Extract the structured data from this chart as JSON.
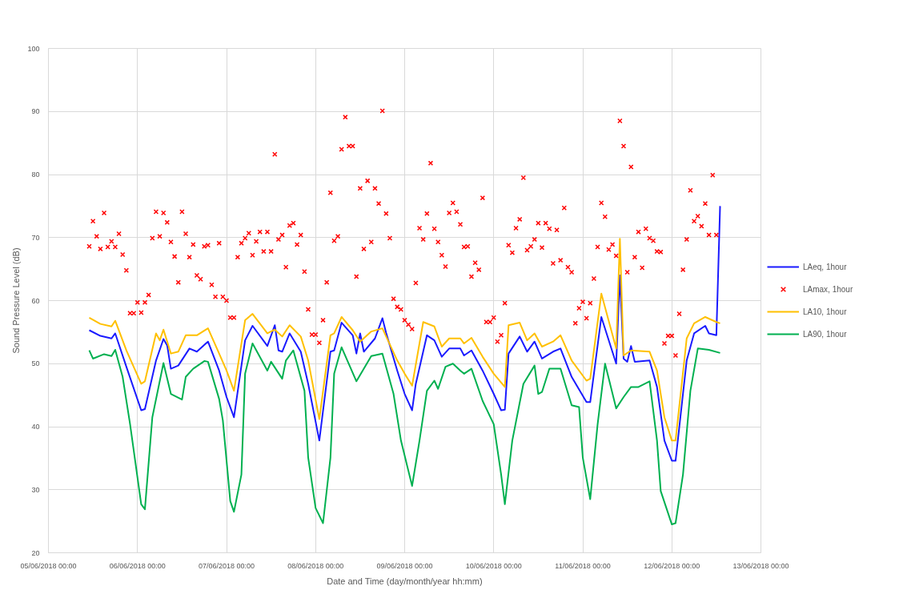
{
  "chart_data": {
    "type": "line",
    "xlabel": "Date and Time (day/month/year hh:mm)",
    "ylabel": "Sound Pressure Level (dB)",
    "xlim": [
      "2018-06-05T00:00",
      "2018-06-13T00:00"
    ],
    "xticks": [
      {
        "value": "2018-06-05T00:00",
        "label": "05/06/2018 00:00"
      },
      {
        "value": "2018-06-06T00:00",
        "label": "06/06/2018 00:00"
      },
      {
        "value": "2018-06-07T00:00",
        "label": "07/06/2018 00:00"
      },
      {
        "value": "2018-06-08T00:00",
        "label": "08/06/2018 00:00"
      },
      {
        "value": "2018-06-09T00:00",
        "label": "09/06/2018 00:00"
      },
      {
        "value": "2018-06-10T00:00",
        "label": "10/06/2018 00:00"
      },
      {
        "value": "2018-06-11T00:00",
        "label": "11/06/2018 00:00"
      },
      {
        "value": "2018-06-12T00:00",
        "label": "12/06/2018 00:00"
      },
      {
        "value": "2018-06-13T00:00",
        "label": "13/06/2018 00:00"
      }
    ],
    "ylim": [
      20,
      100
    ],
    "yticks": [
      20,
      30,
      40,
      50,
      60,
      70,
      80,
      90,
      100
    ],
    "grid": true,
    "legend": "right",
    "series": [
      {
        "name": "LAeq, 1hour",
        "color": "#1a1aff",
        "x": [
          "2018-06-05T11:00",
          "2018-06-05T14:00",
          "2018-06-05T17:00",
          "2018-06-05T18:00",
          "2018-06-05T21:00",
          "2018-06-06T01:00",
          "2018-06-06T02:00",
          "2018-06-06T05:00",
          "2018-06-06T07:00",
          "2018-06-06T08:00",
          "2018-06-06T09:00",
          "2018-06-06T11:00",
          "2018-06-06T14:00",
          "2018-06-06T16:00",
          "2018-06-06T19:00",
          "2018-06-06T22:00",
          "2018-06-07T00:00",
          "2018-06-07T02:00",
          "2018-06-07T05:00",
          "2018-06-07T07:00",
          "2018-06-07T11:00",
          "2018-06-07T13:00",
          "2018-06-07T14:00",
          "2018-06-07T15:00",
          "2018-06-07T17:00",
          "2018-06-07T20:00",
          "2018-06-07T22:00",
          "2018-06-08T01:00",
          "2018-06-08T04:00",
          "2018-06-08T05:00",
          "2018-06-08T07:00",
          "2018-06-08T10:00",
          "2018-06-08T11:00",
          "2018-06-08T12:00",
          "2018-06-08T13:00",
          "2018-06-08T16:00",
          "2018-06-08T18:00",
          "2018-06-08T19:00",
          "2018-06-08T22:00",
          "2018-06-09T00:00",
          "2018-06-09T02:00",
          "2018-06-09T03:00",
          "2018-06-09T06:00",
          "2018-06-09T08:00",
          "2018-06-09T10:00",
          "2018-06-09T12:00",
          "2018-06-09T15:00",
          "2018-06-09T16:00",
          "2018-06-09T18:00",
          "2018-06-09T21:00",
          "2018-06-10T00:00",
          "2018-06-10T02:00",
          "2018-06-10T03:00",
          "2018-06-10T04:00",
          "2018-06-10T07:00",
          "2018-06-10T09:00",
          "2018-06-10T11:00",
          "2018-06-10T13:00",
          "2018-06-10T16:00",
          "2018-06-10T18:00",
          "2018-06-10T21:00",
          "2018-06-11T01:00",
          "2018-06-11T02:00",
          "2018-06-11T05:00",
          "2018-06-11T09:00",
          "2018-06-11T10:00",
          "2018-06-11T11:00",
          "2018-06-11T12:00",
          "2018-06-11T13:00",
          "2018-06-11T14:00",
          "2018-06-11T18:00",
          "2018-06-11T20:00",
          "2018-06-11T22:00",
          "2018-06-12T00:00",
          "2018-06-12T01:00",
          "2018-06-12T04:00",
          "2018-06-12T06:00",
          "2018-06-12T09:00",
          "2018-06-12T10:00",
          "2018-06-12T12:00",
          "2018-06-12T13:00"
        ],
        "values": [
          55.3,
          54.4,
          54.0,
          54.8,
          49.5,
          42.6,
          42.8,
          50.5,
          53.9,
          52.9,
          49.2,
          49.7,
          52.4,
          51.9,
          53.5,
          48.9,
          44.7,
          41.5,
          53.7,
          56.0,
          52.8,
          56.1,
          52.1,
          51.9,
          54.8,
          51.9,
          46.8,
          37.8,
          51.9,
          52.1,
          56.5,
          54.5,
          51.6,
          54.8,
          51.9,
          54.0,
          57.2,
          54.9,
          48.9,
          45.2,
          42.6,
          46.8,
          54.5,
          53.7,
          51.1,
          52.4,
          52.4,
          51.3,
          52.1,
          48.9,
          45.2,
          42.6,
          42.7,
          51.6,
          54.3,
          51.9,
          53.5,
          50.8,
          51.9,
          52.4,
          47.9,
          43.9,
          43.9,
          57.4,
          50.0,
          64.0,
          50.8,
          50.3,
          52.8,
          50.3,
          50.5,
          46.3,
          37.8,
          34.6,
          34.6,
          50.5,
          54.8,
          56.0,
          54.8,
          54.5,
          75.0
        ]
      },
      {
        "name": "LAmax, 1hour",
        "type": "scatter",
        "marker": "cross",
        "color": "#ff0000",
        "x": [
          "2018-06-05T11:00",
          "2018-06-05T12:00",
          "2018-06-05T13:00",
          "2018-06-05T14:00",
          "2018-06-05T15:00",
          "2018-06-05T16:00",
          "2018-06-05T17:00",
          "2018-06-05T18:00",
          "2018-06-05T19:00",
          "2018-06-05T20:00",
          "2018-06-05T21:00",
          "2018-06-05T22:00",
          "2018-06-05T23:00",
          "2018-06-06T00:00",
          "2018-06-06T01:00",
          "2018-06-06T02:00",
          "2018-06-06T03:00",
          "2018-06-06T04:00",
          "2018-06-06T05:00",
          "2018-06-06T06:00",
          "2018-06-06T07:00",
          "2018-06-06T08:00",
          "2018-06-06T09:00",
          "2018-06-06T10:00",
          "2018-06-06T11:00",
          "2018-06-06T12:00",
          "2018-06-06T13:00",
          "2018-06-06T14:00",
          "2018-06-06T15:00",
          "2018-06-06T16:00",
          "2018-06-06T17:00",
          "2018-06-06T18:00",
          "2018-06-06T19:00",
          "2018-06-06T20:00",
          "2018-06-06T21:00",
          "2018-06-06T22:00",
          "2018-06-06T23:00",
          "2018-06-07T00:00",
          "2018-06-07T01:00",
          "2018-06-07T02:00",
          "2018-06-07T03:00",
          "2018-06-07T04:00",
          "2018-06-07T05:00",
          "2018-06-07T06:00",
          "2018-06-07T07:00",
          "2018-06-07T08:00",
          "2018-06-07T09:00",
          "2018-06-07T10:00",
          "2018-06-07T11:00",
          "2018-06-07T12:00",
          "2018-06-07T13:00",
          "2018-06-07T14:00",
          "2018-06-07T15:00",
          "2018-06-07T16:00",
          "2018-06-07T17:00",
          "2018-06-07T18:00",
          "2018-06-07T19:00",
          "2018-06-07T20:00",
          "2018-06-07T21:00",
          "2018-06-07T22:00",
          "2018-06-07T23:00",
          "2018-06-08T00:00",
          "2018-06-08T01:00",
          "2018-06-08T02:00",
          "2018-06-08T03:00",
          "2018-06-08T04:00",
          "2018-06-08T05:00",
          "2018-06-08T06:00",
          "2018-06-08T07:00",
          "2018-06-08T08:00",
          "2018-06-08T09:00",
          "2018-06-08T10:00",
          "2018-06-08T11:00",
          "2018-06-08T12:00",
          "2018-06-08T13:00",
          "2018-06-08T14:00",
          "2018-06-08T15:00",
          "2018-06-08T16:00",
          "2018-06-08T17:00",
          "2018-06-08T18:00",
          "2018-06-08T19:00",
          "2018-06-08T20:00",
          "2018-06-08T21:00",
          "2018-06-08T22:00",
          "2018-06-08T23:00",
          "2018-06-09T00:00",
          "2018-06-09T01:00",
          "2018-06-09T02:00",
          "2018-06-09T03:00",
          "2018-06-09T04:00",
          "2018-06-09T05:00",
          "2018-06-09T06:00",
          "2018-06-09T07:00",
          "2018-06-09T08:00",
          "2018-06-09T09:00",
          "2018-06-09T10:00",
          "2018-06-09T11:00",
          "2018-06-09T12:00",
          "2018-06-09T13:00",
          "2018-06-09T14:00",
          "2018-06-09T15:00",
          "2018-06-09T16:00",
          "2018-06-09T17:00",
          "2018-06-09T18:00",
          "2018-06-09T19:00",
          "2018-06-09T20:00",
          "2018-06-09T21:00",
          "2018-06-09T22:00",
          "2018-06-09T23:00",
          "2018-06-10T00:00",
          "2018-06-10T01:00",
          "2018-06-10T02:00",
          "2018-06-10T03:00",
          "2018-06-10T04:00",
          "2018-06-10T05:00",
          "2018-06-10T06:00",
          "2018-06-10T07:00",
          "2018-06-10T08:00",
          "2018-06-10T09:00",
          "2018-06-10T10:00",
          "2018-06-10T11:00",
          "2018-06-10T12:00",
          "2018-06-10T13:00",
          "2018-06-10T14:00",
          "2018-06-10T15:00",
          "2018-06-10T16:00",
          "2018-06-10T17:00",
          "2018-06-10T18:00",
          "2018-06-10T19:00",
          "2018-06-10T20:00",
          "2018-06-10T21:00",
          "2018-06-10T22:00",
          "2018-06-10T23:00",
          "2018-06-11T00:00",
          "2018-06-11T01:00",
          "2018-06-11T02:00",
          "2018-06-11T03:00",
          "2018-06-11T04:00",
          "2018-06-11T05:00",
          "2018-06-11T06:00",
          "2018-06-11T07:00",
          "2018-06-11T08:00",
          "2018-06-11T09:00",
          "2018-06-11T10:00",
          "2018-06-11T11:00",
          "2018-06-11T12:00",
          "2018-06-11T13:00",
          "2018-06-11T14:00",
          "2018-06-11T15:00",
          "2018-06-11T16:00",
          "2018-06-11T17:00",
          "2018-06-11T18:00",
          "2018-06-11T19:00",
          "2018-06-11T20:00",
          "2018-06-11T21:00",
          "2018-06-11T22:00",
          "2018-06-11T23:00",
          "2018-06-12T00:00",
          "2018-06-12T01:00",
          "2018-06-12T02:00",
          "2018-06-12T03:00",
          "2018-06-12T04:00",
          "2018-06-12T05:00",
          "2018-06-12T06:00",
          "2018-06-12T07:00",
          "2018-06-12T08:00",
          "2018-06-12T09:00",
          "2018-06-12T10:00",
          "2018-06-12T11:00",
          "2018-06-12T12:00"
        ],
        "values": [
          68.6,
          72.6,
          70.2,
          68.2,
          73.9,
          68.5,
          69.4,
          68.5,
          70.6,
          67.3,
          64.8,
          58.0,
          58.0,
          59.7,
          58.1,
          59.7,
          60.9,
          69.9,
          74.1,
          70.2,
          73.9,
          72.4,
          69.3,
          67.0,
          62.9,
          74.1,
          70.6,
          66.9,
          68.9,
          64.0,
          63.4,
          68.6,
          68.8,
          62.5,
          60.6,
          69.1,
          60.6,
          60.0,
          57.3,
          57.3,
          66.9,
          69.1,
          69.9,
          70.7,
          67.2,
          69.4,
          70.9,
          67.8,
          70.9,
          67.8,
          83.2,
          69.7,
          70.4,
          65.3,
          71.9,
          72.3,
          68.9,
          70.4,
          64.6,
          58.6,
          54.6,
          54.6,
          53.3,
          56.9,
          62.9,
          77.1,
          69.5,
          70.2,
          84.0,
          89.1,
          84.5,
          84.5,
          63.8,
          77.8,
          68.2,
          79.0,
          69.3,
          77.8,
          75.4,
          90.1,
          73.8,
          69.9,
          60.3,
          59.0,
          58.6,
          56.9,
          56.2,
          55.5,
          62.8,
          71.5,
          69.7,
          73.8,
          81.8,
          71.4,
          69.3,
          67.2,
          65.4,
          73.9,
          75.5,
          74.1,
          72.1,
          68.5,
          68.6,
          63.8,
          66.0,
          64.9,
          76.3,
          56.6,
          56.6,
          57.3,
          53.5,
          54.5,
          59.6,
          68.8,
          67.6,
          71.5,
          72.9,
          79.5,
          68.0,
          68.6,
          69.7,
          72.3,
          68.4,
          72.3,
          71.4,
          65.9,
          71.2,
          66.4,
          74.7,
          65.3,
          64.5,
          56.4,
          58.8,
          59.8,
          57.2,
          59.6,
          63.5,
          68.5,
          75.5,
          73.3,
          68.1,
          68.9,
          67.1,
          88.5,
          84.5,
          64.5,
          81.2,
          66.9,
          70.9,
          65.2,
          71.4,
          69.9,
          69.5,
          67.8,
          67.7,
          53.2,
          54.4,
          54.4,
          51.3,
          57.9,
          64.9,
          69.7,
          77.5,
          72.6,
          73.4,
          71.8,
          75.4,
          70.4,
          79.9,
          70.4
        ]
      },
      {
        "name": "LA10, 1hour",
        "color": "#ffc000",
        "x": [
          "2018-06-05T11:00",
          "2018-06-05T14:00",
          "2018-06-05T17:00",
          "2018-06-05T18:00",
          "2018-06-05T21:00",
          "2018-06-06T01:00",
          "2018-06-06T02:00",
          "2018-06-06T05:00",
          "2018-06-06T06:00",
          "2018-06-06T07:00",
          "2018-06-06T09:00",
          "2018-06-06T11:00",
          "2018-06-06T13:00",
          "2018-06-06T16:00",
          "2018-06-06T19:00",
          "2018-06-06T22:00",
          "2018-06-07T00:00",
          "2018-06-07T02:00",
          "2018-06-07T05:00",
          "2018-06-07T07:00",
          "2018-06-07T11:00",
          "2018-06-07T13:00",
          "2018-06-07T15:00",
          "2018-06-07T17:00",
          "2018-06-07T20:00",
          "2018-06-07T22:00",
          "2018-06-08T01:00",
          "2018-06-08T04:00",
          "2018-06-08T05:00",
          "2018-06-08T07:00",
          "2018-06-08T10:00",
          "2018-06-08T12:00",
          "2018-06-08T15:00",
          "2018-06-08T18:00",
          "2018-06-08T22:00",
          "2018-06-09T00:00",
          "2018-06-09T02:00",
          "2018-06-09T05:00",
          "2018-06-09T08:00",
          "2018-06-09T10:00",
          "2018-06-09T12:00",
          "2018-06-09T15:00",
          "2018-06-09T16:00",
          "2018-06-09T18:00",
          "2018-06-09T21:00",
          "2018-06-10T00:00",
          "2018-06-10T03:00",
          "2018-06-10T04:00",
          "2018-06-10T07:00",
          "2018-06-10T09:00",
          "2018-06-10T11:00",
          "2018-06-10T13:00",
          "2018-06-10T16:00",
          "2018-06-10T18:00",
          "2018-06-10T21:00",
          "2018-06-11T01:00",
          "2018-06-11T02:00",
          "2018-06-11T05:00",
          "2018-06-11T09:00",
          "2018-06-11T10:00",
          "2018-06-11T11:00",
          "2018-06-11T13:00",
          "2018-06-11T18:00",
          "2018-06-11T20:00",
          "2018-06-11T22:00",
          "2018-06-12T00:00",
          "2018-06-12T01:00",
          "2018-06-12T04:00",
          "2018-06-12T06:00",
          "2018-06-12T09:00",
          "2018-06-12T12:00",
          "2018-06-12T13:00"
        ],
        "values": [
          57.3,
          56.3,
          55.9,
          56.8,
          52.1,
          46.8,
          47.2,
          54.8,
          53.7,
          55.4,
          51.6,
          51.9,
          54.5,
          54.5,
          55.6,
          51.6,
          48.9,
          45.7,
          56.9,
          57.9,
          54.8,
          55.4,
          54.3,
          56.1,
          54.3,
          50.5,
          41.2,
          54.5,
          54.8,
          57.4,
          55.3,
          53.5,
          55.1,
          55.6,
          50.5,
          48.4,
          46.5,
          56.6,
          55.9,
          52.7,
          54.0,
          54.0,
          53.2,
          54.1,
          51.1,
          48.4,
          46.3,
          56.1,
          56.5,
          53.7,
          54.8,
          52.7,
          53.5,
          54.5,
          50.5,
          47.3,
          47.6,
          61.1,
          52.4,
          69.8,
          51.3,
          52.1,
          51.9,
          48.9,
          41.5,
          37.8,
          37.8,
          54.0,
          56.4,
          57.4,
          56.6,
          56.4
        ]
      },
      {
        "name": "LA90, 1hour",
        "color": "#00b050",
        "x": [
          "2018-06-05T11:00",
          "2018-06-05T12:00",
          "2018-06-05T15:00",
          "2018-06-05T17:00",
          "2018-06-05T18:00",
          "2018-06-05T20:00",
          "2018-06-05T22:00",
          "2018-06-06T01:00",
          "2018-06-06T02:00",
          "2018-06-06T04:00",
          "2018-06-06T07:00",
          "2018-06-06T09:00",
          "2018-06-06T12:00",
          "2018-06-06T13:00",
          "2018-06-06T15:00",
          "2018-06-06T18:00",
          "2018-06-06T19:00",
          "2018-06-06T22:00",
          "2018-06-06T23:00",
          "2018-06-07T01:00",
          "2018-06-07T02:00",
          "2018-06-07T04:00",
          "2018-06-07T05:00",
          "2018-06-07T07:00",
          "2018-06-07T11:00",
          "2018-06-07T12:00",
          "2018-06-07T15:00",
          "2018-06-07T16:00",
          "2018-06-07T18:00",
          "2018-06-07T21:00",
          "2018-06-07T22:00",
          "2018-06-08T00:00",
          "2018-06-08T02:00",
          "2018-06-08T04:00",
          "2018-06-08T05:00",
          "2018-06-08T07:00",
          "2018-06-08T11:00",
          "2018-06-08T13:00",
          "2018-06-08T15:00",
          "2018-06-08T18:00",
          "2018-06-08T21:00",
          "2018-06-08T23:00",
          "2018-06-09T02:00",
          "2018-06-09T04:00",
          "2018-06-09T06:00",
          "2018-06-09T08:00",
          "2018-06-09T09:00",
          "2018-06-09T11:00",
          "2018-06-09T13:00",
          "2018-06-09T15:00",
          "2018-06-09T16:00",
          "2018-06-09T18:00",
          "2018-06-09T21:00",
          "2018-06-10T00:00",
          "2018-06-10T02:00",
          "2018-06-10T03:00",
          "2018-06-10T05:00",
          "2018-06-10T08:00",
          "2018-06-10T11:00",
          "2018-06-10T12:00",
          "2018-06-10T13:00",
          "2018-06-10T15:00",
          "2018-06-10T18:00",
          "2018-06-10T21:00",
          "2018-06-10T23:00",
          "2018-06-11T00:00",
          "2018-06-11T02:00",
          "2018-06-11T04:00",
          "2018-06-11T06:00",
          "2018-06-11T09:00",
          "2018-06-11T11:00",
          "2018-06-11T13:00",
          "2018-06-11T15:00",
          "2018-06-11T18:00",
          "2018-06-11T20:00",
          "2018-06-11T21:00",
          "2018-06-12T00:00",
          "2018-06-12T01:00",
          "2018-06-12T03:00",
          "2018-06-12T05:00",
          "2018-06-12T07:00",
          "2018-06-12T10:00",
          "2018-06-12T13:00"
        ],
        "values": [
          52.1,
          50.8,
          51.5,
          51.2,
          52.2,
          47.9,
          40.4,
          27.7,
          26.9,
          41.5,
          50.1,
          45.2,
          44.3,
          47.9,
          49.2,
          50.4,
          50.3,
          44.4,
          41.0,
          28.2,
          26.5,
          32.4,
          48.4,
          53.2,
          48.9,
          50.3,
          47.6,
          50.5,
          52.1,
          45.7,
          35.1,
          27.1,
          24.7,
          35.1,
          48.4,
          52.6,
          47.2,
          49.2,
          51.2,
          51.6,
          45.2,
          37.8,
          30.6,
          37.8,
          45.7,
          47.3,
          46.0,
          49.5,
          50.0,
          48.9,
          48.4,
          49.2,
          44.1,
          40.4,
          32.4,
          27.7,
          37.8,
          46.8,
          49.7,
          45.2,
          45.5,
          49.2,
          49.2,
          43.4,
          43.1,
          35.1,
          28.5,
          40.4,
          50.0,
          42.9,
          44.7,
          46.3,
          46.3,
          47.2,
          37.8,
          29.8,
          24.5,
          24.7,
          32.4,
          45.7,
          52.4,
          52.2,
          51.7
        ]
      }
    ]
  }
}
